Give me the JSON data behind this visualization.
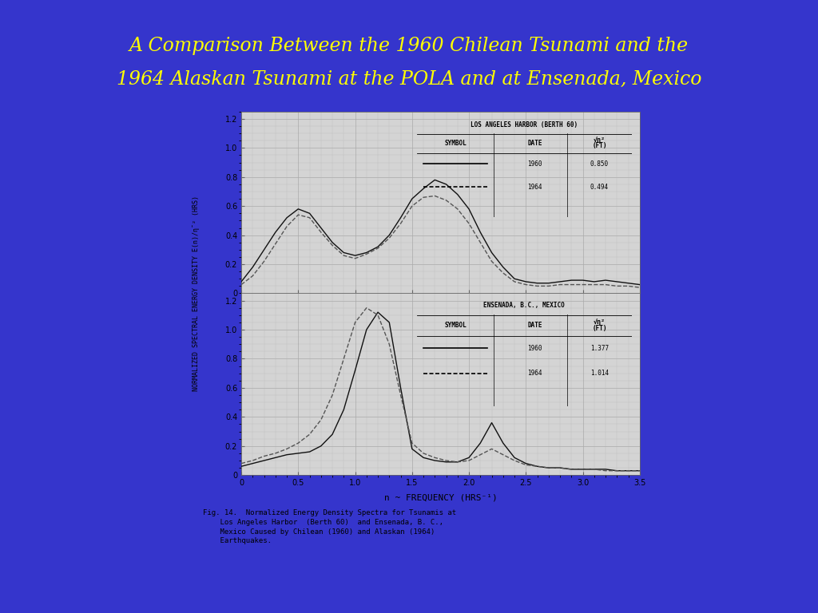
{
  "title_line1": "A Comparison Between the 1960 Chilean Tsunami and the",
  "title_line2": "1964 Alaskan Tsunami at the POLA and at Ensenada, Mexico",
  "title_color": "#FFFF00",
  "bg_color": "#3535CC",
  "panel_bg": "#FFFFFF",
  "chart_bg": "#D4D4D4",
  "caption_bg": "#F5F0DC",
  "fig_caption_l1": "Fig. 14.  Normalized Energy Density Spectra for Tsunamis at",
  "fig_caption_l2": "    Los Angeles Harbor  (Berth 60)  and Ensenada, B. C.,",
  "fig_caption_l3": "    Mexico Caused by Chilean (1960) and Alaskan (1964)",
  "fig_caption_l4": "    Earthquakes.",
  "ylabel": "NORMALIZED SPECTRAL ENERGY DENSITY E(n)/η¯² (HRS)",
  "xlabel": "n ~ FREQUENCY (HRS⁻¹)",
  "top_title": "LOS ANGELES HARBOR (BERTH 60)",
  "bottom_title": "ENSENADA, B.C., MEXICO",
  "x_ticks": [
    0,
    0.5,
    1.0,
    1.5,
    2.0,
    2.5,
    3.0,
    3.5
  ],
  "x_tick_labels": [
    "0",
    "0.5",
    "1.0",
    "1.5",
    "2.0",
    "2.5",
    "3.0",
    "3.5"
  ],
  "y_ticks": [
    0,
    0.2,
    0.4,
    0.6,
    0.8,
    1.0,
    1.2
  ],
  "y_tick_labels": [
    "0",
    "0.2",
    "0.4",
    "0.6",
    "0.8",
    "1.0",
    "1.2"
  ],
  "top_1960_x": [
    0.0,
    0.1,
    0.2,
    0.3,
    0.4,
    0.5,
    0.6,
    0.7,
    0.8,
    0.9,
    1.0,
    1.1,
    1.2,
    1.3,
    1.4,
    1.5,
    1.6,
    1.7,
    1.8,
    1.9,
    2.0,
    2.1,
    2.2,
    2.3,
    2.4,
    2.5,
    2.6,
    2.7,
    2.8,
    2.9,
    3.0,
    3.1,
    3.2,
    3.3,
    3.4,
    3.5
  ],
  "top_1960_y": [
    0.08,
    0.18,
    0.3,
    0.42,
    0.52,
    0.58,
    0.55,
    0.45,
    0.35,
    0.28,
    0.26,
    0.28,
    0.32,
    0.4,
    0.52,
    0.65,
    0.72,
    0.78,
    0.75,
    0.68,
    0.58,
    0.42,
    0.28,
    0.18,
    0.1,
    0.08,
    0.07,
    0.07,
    0.08,
    0.09,
    0.09,
    0.08,
    0.09,
    0.08,
    0.07,
    0.06
  ],
  "top_1964_x": [
    0.0,
    0.1,
    0.2,
    0.3,
    0.4,
    0.5,
    0.6,
    0.7,
    0.8,
    0.9,
    1.0,
    1.1,
    1.2,
    1.3,
    1.4,
    1.5,
    1.6,
    1.7,
    1.8,
    1.9,
    2.0,
    2.1,
    2.2,
    2.3,
    2.4,
    2.5,
    2.6,
    2.7,
    2.8,
    2.9,
    3.0,
    3.1,
    3.2,
    3.3,
    3.4,
    3.5
  ],
  "top_1964_y": [
    0.06,
    0.12,
    0.22,
    0.34,
    0.46,
    0.54,
    0.52,
    0.42,
    0.33,
    0.26,
    0.24,
    0.27,
    0.31,
    0.38,
    0.48,
    0.6,
    0.66,
    0.67,
    0.64,
    0.58,
    0.48,
    0.35,
    0.22,
    0.14,
    0.08,
    0.06,
    0.05,
    0.05,
    0.06,
    0.06,
    0.06,
    0.06,
    0.06,
    0.05,
    0.05,
    0.04
  ],
  "bot_1960_x": [
    0.0,
    0.05,
    0.1,
    0.2,
    0.3,
    0.4,
    0.5,
    0.6,
    0.7,
    0.8,
    0.9,
    1.0,
    1.1,
    1.2,
    1.3,
    1.4,
    1.5,
    1.6,
    1.7,
    1.8,
    1.9,
    2.0,
    2.1,
    2.2,
    2.3,
    2.4,
    2.5,
    2.6,
    2.7,
    2.8,
    2.9,
    3.0,
    3.1,
    3.2,
    3.3,
    3.4,
    3.5
  ],
  "bot_1960_y": [
    0.06,
    0.07,
    0.08,
    0.1,
    0.12,
    0.14,
    0.15,
    0.16,
    0.2,
    0.28,
    0.45,
    0.72,
    1.0,
    1.12,
    1.05,
    0.6,
    0.18,
    0.12,
    0.1,
    0.09,
    0.09,
    0.12,
    0.22,
    0.36,
    0.22,
    0.12,
    0.08,
    0.06,
    0.05,
    0.05,
    0.04,
    0.04,
    0.04,
    0.04,
    0.03,
    0.03,
    0.03
  ],
  "bot_1964_x": [
    0.0,
    0.05,
    0.1,
    0.2,
    0.3,
    0.4,
    0.5,
    0.6,
    0.7,
    0.8,
    0.9,
    1.0,
    1.1,
    1.2,
    1.3,
    1.4,
    1.5,
    1.6,
    1.7,
    1.8,
    1.9,
    2.0,
    2.1,
    2.2,
    2.3,
    2.4,
    2.5,
    2.6,
    2.7,
    2.8,
    2.9,
    3.0,
    3.1,
    3.2,
    3.3,
    3.4,
    3.5
  ],
  "bot_1964_y": [
    0.08,
    0.09,
    0.1,
    0.13,
    0.15,
    0.18,
    0.22,
    0.28,
    0.38,
    0.55,
    0.8,
    1.05,
    1.15,
    1.1,
    0.9,
    0.55,
    0.22,
    0.15,
    0.12,
    0.1,
    0.09,
    0.1,
    0.14,
    0.18,
    0.14,
    0.1,
    0.07,
    0.06,
    0.05,
    0.05,
    0.04,
    0.04,
    0.04,
    0.03,
    0.03,
    0.03,
    0.03
  ],
  "line_color_1960": "#111111",
  "line_color_1964": "#555555",
  "top_rms_1960": "0.850",
  "top_rms_1964": "0.494",
  "bot_rms_1960": "1.377",
  "bot_rms_1964": "1.014"
}
